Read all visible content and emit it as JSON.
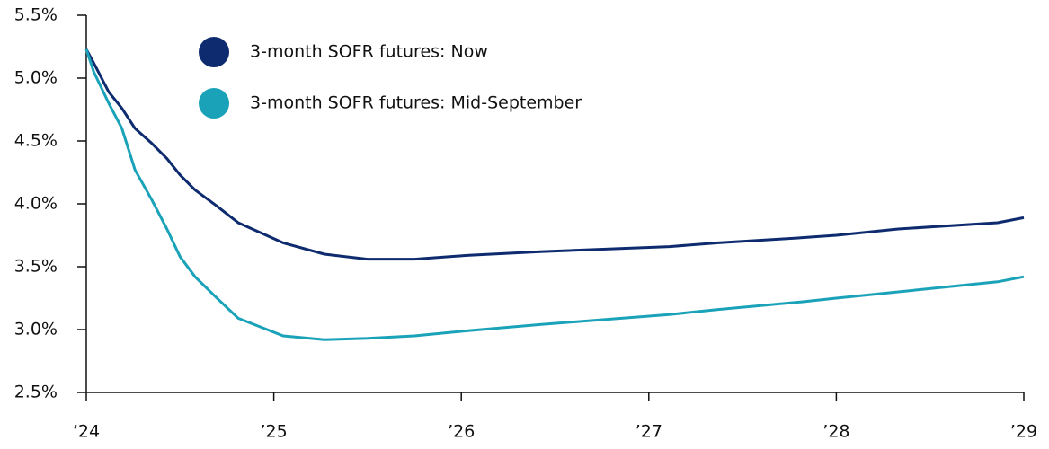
{
  "chart_data": {
    "type": "line",
    "x": [
      2024.0,
      2024.04,
      2024.12,
      2024.19,
      2024.26,
      2024.35,
      2024.43,
      2024.5,
      2024.58,
      2024.69,
      2024.81,
      2025.05,
      2025.27,
      2025.5,
      2025.75,
      2026.03,
      2026.42,
      2027.11,
      2027.37,
      2027.81,
      2028.0,
      2028.33,
      2028.86,
      2029.0
    ],
    "series": [
      {
        "name": "3-month SOFR futures: Now",
        "color": "#0d2b6e",
        "values": [
          5.23,
          5.12,
          4.89,
          4.76,
          4.6,
          4.48,
          4.36,
          4.23,
          4.11,
          3.99,
          3.85,
          3.69,
          3.6,
          3.56,
          3.56,
          3.59,
          3.62,
          3.66,
          3.69,
          3.73,
          3.75,
          3.8,
          3.85,
          3.89
        ]
      },
      {
        "name": "3-month SOFR futures: Mid-September",
        "color": "#1aa3b8",
        "values": [
          5.23,
          5.05,
          4.8,
          4.6,
          4.27,
          4.03,
          3.8,
          3.58,
          3.42,
          3.26,
          3.09,
          2.95,
          2.92,
          2.93,
          2.95,
          2.99,
          3.04,
          3.12,
          3.16,
          3.22,
          3.25,
          3.3,
          3.38,
          3.42
        ]
      }
    ],
    "xlim": [
      2024,
      2029
    ],
    "xticks": [
      {
        "value": 2024,
        "label": "’24"
      },
      {
        "value": 2025,
        "label": "’25"
      },
      {
        "value": 2026,
        "label": "’26"
      },
      {
        "value": 2027,
        "label": "’27"
      },
      {
        "value": 2028,
        "label": "’28"
      },
      {
        "value": 2029,
        "label": "’29"
      }
    ],
    "ylim": [
      2.5,
      5.5
    ],
    "yticks": [
      {
        "value": 2.5,
        "label": "2.5%"
      },
      {
        "value": 3.0,
        "label": "3.0%"
      },
      {
        "value": 3.5,
        "label": "3.5%"
      },
      {
        "value": 4.0,
        "label": "4.0%"
      },
      {
        "value": 4.5,
        "label": "4.5%"
      },
      {
        "value": 5.0,
        "label": "5.0%"
      },
      {
        "value": 5.5,
        "label": "5.5%"
      }
    ],
    "legend": "upper left"
  }
}
